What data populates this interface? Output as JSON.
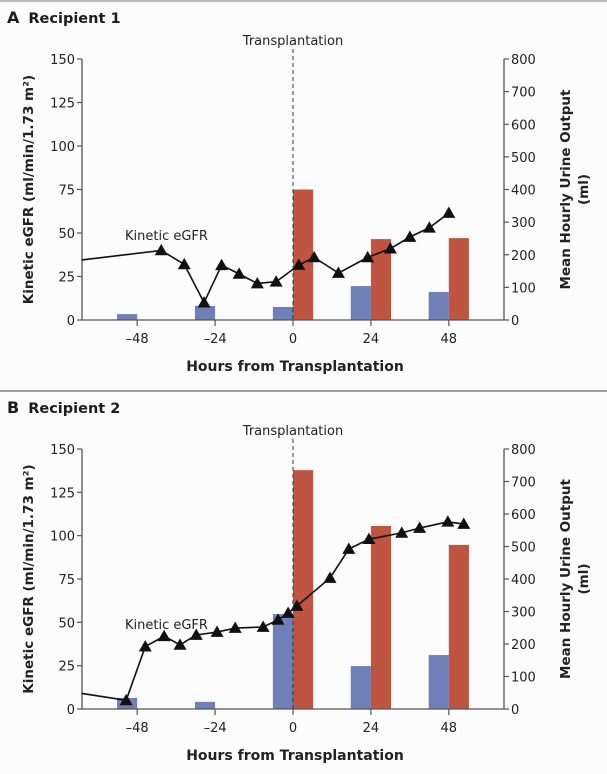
{
  "panels": [
    {
      "letter": "A",
      "title": "Recipient 1"
    },
    {
      "letter": "B",
      "title": "Recipient 2"
    }
  ],
  "colors": {
    "pre_bar": "#6F80B9",
    "post_bar": "#BF5440",
    "line": "#111111",
    "axis": "#555555"
  },
  "chart_data": [
    {
      "type": "bar+line",
      "title": "Recipient 1",
      "xlabel": "Hours from Transplantation",
      "ylabel_left": "Kinetic eGFR (ml/min/1.73 m²)",
      "ylabel_right": "Mean Hourly Urine Output (ml)",
      "xlim": [
        -65,
        65
      ],
      "xticks": [
        -48,
        -24,
        0,
        24,
        48
      ],
      "xtick_labels": [
        "–48",
        "–24",
        "0",
        "24",
        "48"
      ],
      "ylim_left": [
        0,
        150
      ],
      "yticks_left": [
        0,
        25,
        50,
        75,
        100,
        125,
        150
      ],
      "ylim_right": [
        0,
        800
      ],
      "yticks_right": [
        0,
        100,
        200,
        300,
        400,
        500,
        600,
        700,
        800
      ],
      "annotation": {
        "text": "Transplantation",
        "x": 0
      },
      "line_label": "Kinetic eGFR",
      "bar_categories": [
        -48,
        -24,
        0,
        24,
        48
      ],
      "bar_series": [
        {
          "name": "urine output (blue)",
          "values": [
            18,
            43,
            40,
            104,
            86
          ]
        },
        {
          "name": "urine output (red)",
          "values": [
            null,
            null,
            400,
            248,
            251
          ]
        }
      ],
      "line_series": {
        "name": "Kinetic eGFR",
        "start": {
          "x": -65,
          "y": 34.5
        },
        "x": [
          -40.6,
          -33.5,
          -27.4,
          -22,
          -16.6,
          -11,
          -5.2,
          1.8,
          6.5,
          14,
          23,
          30,
          36,
          42,
          48
        ],
        "y": [
          40,
          32,
          10,
          31.5,
          26.5,
          21,
          22,
          31.6,
          36,
          27,
          36,
          41,
          47.7,
          53,
          61.5
        ]
      }
    },
    {
      "type": "bar+line",
      "title": "Recipient 2",
      "xlabel": "Hours from Transplantation",
      "ylabel_left": "Kinetic eGFR (ml/min/1.73 m²)",
      "ylabel_right": "Mean Hourly Urine Output (ml)",
      "xlim": [
        -65,
        65
      ],
      "xticks": [
        -48,
        -24,
        0,
        24,
        48
      ],
      "xtick_labels": [
        "–48",
        "–24",
        "0",
        "24",
        "48"
      ],
      "ylim_left": [
        0,
        150
      ],
      "yticks_left": [
        0,
        25,
        50,
        75,
        100,
        125,
        150
      ],
      "ylim_right": [
        0,
        800
      ],
      "yticks_right": [
        0,
        100,
        200,
        300,
        400,
        500,
        600,
        700,
        800
      ],
      "annotation": {
        "text": "Transplantation",
        "x": 0
      },
      "line_label": "Kinetic eGFR",
      "bar_categories": [
        -48,
        -24,
        0,
        24,
        48
      ],
      "bar_series": [
        {
          "name": "urine output (blue)",
          "values": [
            34,
            22,
            292,
            132,
            166
          ]
        },
        {
          "name": "urine output (red)",
          "values": [
            null,
            null,
            735,
            563,
            505
          ]
        }
      ],
      "line_series": {
        "name": "Kinetic eGFR",
        "start": {
          "x": -65,
          "y": 9
        },
        "x": [
          -51.4,
          -45.5,
          -39.7,
          -34.8,
          -29.8,
          -23.4,
          -17.8,
          -9.2,
          -4.6,
          -1.5,
          1.2,
          11.4,
          17.2,
          23.4,
          33.5,
          39,
          47.7,
          52.6
        ],
        "y": [
          5,
          36,
          42,
          37,
          42.7,
          44.4,
          46.7,
          47.3,
          51.4,
          55.4,
          59.4,
          75.6,
          92.3,
          98,
          101.6,
          104.4,
          108,
          106.7
        ]
      }
    }
  ]
}
